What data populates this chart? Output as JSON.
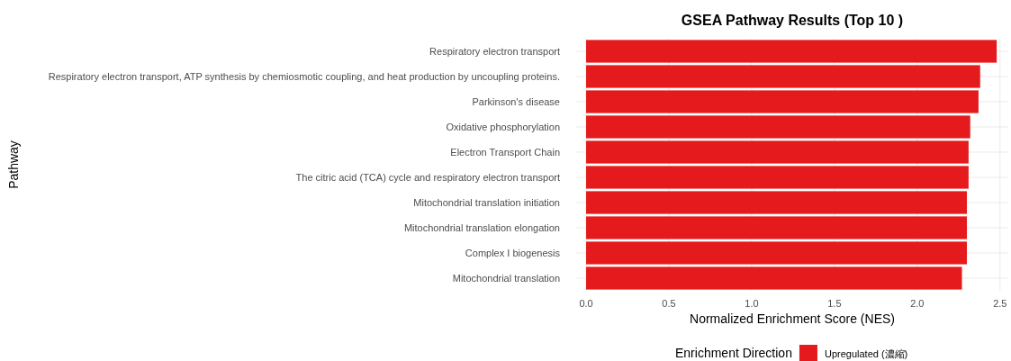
{
  "chart_data": {
    "type": "bar",
    "orientation": "horizontal",
    "title": "GSEA Pathway Results (Top 10 )",
    "xlabel": "Normalized Enrichment Score (NES)",
    "ylabel": "Pathway",
    "legend_title": "Enrichment Direction",
    "categories": [
      "Respiratory electron transport",
      "Respiratory electron transport, ATP synthesis by chemiosmotic coupling, and heat production by uncoupling proteins.",
      "Parkinson's disease",
      "Oxidative phosphorylation",
      "Electron Transport Chain",
      "The citric acid (TCA) cycle and respiratory electron transport",
      "Mitochondrial translation initiation",
      "Mitochondrial translation elongation",
      "Complex I biogenesis",
      "Mitochondrial translation"
    ],
    "series": [
      {
        "name": "Upregulated (濃縮)",
        "color": "#e41a1c",
        "values": [
          2.48,
          2.38,
          2.37,
          2.32,
          2.31,
          2.31,
          2.3,
          2.3,
          2.3,
          2.27
        ]
      }
    ],
    "xlim": [
      -0.06,
      2.55
    ],
    "xticks": [
      {
        "value": 0,
        "label": "0.0"
      },
      {
        "value": 0.5,
        "label": "0.5"
      },
      {
        "value": 1,
        "label": "1.0"
      },
      {
        "value": 1.5,
        "label": "1.5"
      },
      {
        "value": 2,
        "label": "2.0"
      },
      {
        "value": 2.5,
        "label": "2.5"
      }
    ],
    "grid": true,
    "legend": "bottom"
  }
}
